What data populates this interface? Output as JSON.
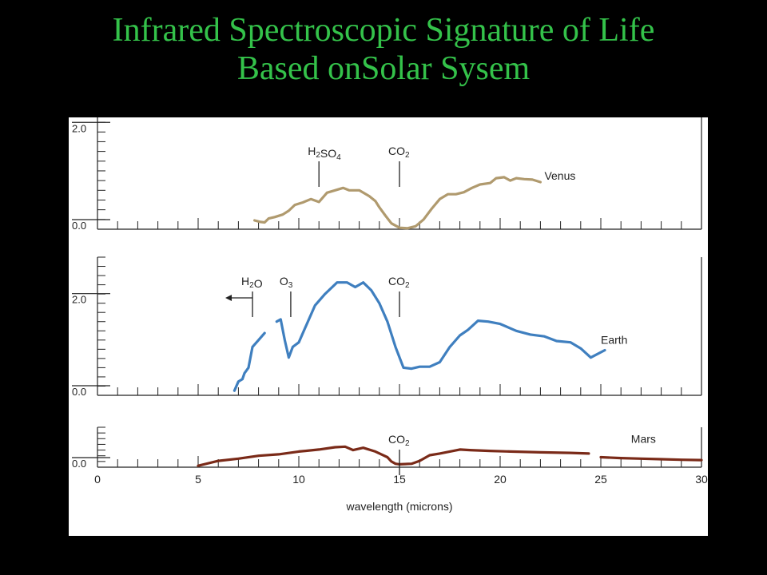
{
  "slide": {
    "title_line1": "Infrared Spectroscopic Signature of Life",
    "title_line2": "Based onSolar Sysem",
    "title_color": "#34c24a",
    "background": "#000000"
  },
  "chart_data": {
    "type": "line",
    "x": {
      "label": "wavelength (microns)",
      "range": [
        0,
        30
      ],
      "ticks": [
        "0",
        "5",
        "10",
        "15",
        "20",
        "25",
        "30"
      ],
      "minor_step": 1
    },
    "grid": false,
    "panels": [
      {
        "id": "venus",
        "ylim": [
          0,
          2.3
        ],
        "y_ticks": [
          {
            "value": 0,
            "label": "0.0"
          },
          {
            "value": 2.0,
            "label": "2.0"
          }
        ],
        "minor_step": 0.2,
        "series": [
          {
            "name": "Venus",
            "color": "#b09a6e",
            "segments": [
              [
                [
                  7.8,
                  0.18
                ],
                [
                  8.1,
                  0.15
                ],
                [
                  8.3,
                  0.14
                ],
                [
                  8.5,
                  0.22
                ],
                [
                  8.8,
                  0.25
                ],
                [
                  9.2,
                  0.3
                ],
                [
                  9.5,
                  0.38
                ],
                [
                  9.8,
                  0.5
                ],
                [
                  10.2,
                  0.55
                ],
                [
                  10.6,
                  0.62
                ],
                [
                  11.0,
                  0.56
                ],
                [
                  11.4,
                  0.75
                ],
                [
                  11.8,
                  0.8
                ],
                [
                  12.2,
                  0.85
                ],
                [
                  12.5,
                  0.8
                ],
                [
                  13.0,
                  0.8
                ],
                [
                  13.5,
                  0.68
                ],
                [
                  13.8,
                  0.58
                ],
                [
                  14.0,
                  0.45
                ],
                [
                  14.3,
                  0.28
                ],
                [
                  14.6,
                  0.12
                ],
                [
                  15.0,
                  0.03
                ],
                [
                  15.4,
                  0.02
                ],
                [
                  15.8,
                  0.06
                ],
                [
                  16.2,
                  0.2
                ],
                [
                  16.6,
                  0.42
                ],
                [
                  17.0,
                  0.62
                ],
                [
                  17.4,
                  0.72
                ],
                [
                  17.8,
                  0.72
                ],
                [
                  18.2,
                  0.76
                ],
                [
                  18.6,
                  0.85
                ],
                [
                  19.0,
                  0.92
                ],
                [
                  19.5,
                  0.95
                ],
                [
                  19.8,
                  1.05
                ],
                [
                  20.2,
                  1.07
                ],
                [
                  20.5,
                  1.0
                ],
                [
                  20.8,
                  1.05
                ],
                [
                  21.2,
                  1.03
                ],
                [
                  21.6,
                  1.02
                ],
                [
                  22.0,
                  0.97
                ]
              ]
            ]
          }
        ],
        "annotations": [
          {
            "text": "H",
            "sub": "2",
            "text2": "SO",
            "sub2": "4",
            "x": 11.0
          },
          {
            "text": "CO",
            "sub": "2",
            "x": 15.0
          },
          {
            "text": "Venus",
            "x": 22.2,
            "y": 1.02,
            "kind": "series-label"
          }
        ]
      },
      {
        "id": "earth",
        "ylim": [
          0,
          3.0
        ],
        "y_ticks": [
          {
            "value": 0,
            "label": "0.0"
          },
          {
            "value": 2.0,
            "label": "2.0"
          }
        ],
        "minor_step": 0.2,
        "series": [
          {
            "name": "Earth",
            "color": "#3f7fbf",
            "segments": [
              [
                [
                  6.8,
                  0.1
                ],
                [
                  7.0,
                  0.3
                ],
                [
                  7.2,
                  0.35
                ],
                [
                  7.3,
                  0.48
                ],
                [
                  7.5,
                  0.6
                ],
                [
                  7.7,
                  1.05
                ],
                [
                  8.0,
                  1.2
                ],
                [
                  8.3,
                  1.35
                ]
              ],
              [
                [
                  8.9,
                  1.6
                ],
                [
                  9.1,
                  1.65
                ],
                [
                  9.3,
                  1.2
                ],
                [
                  9.5,
                  0.82
                ],
                [
                  9.7,
                  1.05
                ],
                [
                  10.0,
                  1.15
                ],
                [
                  10.4,
                  1.55
                ],
                [
                  10.8,
                  1.95
                ],
                [
                  11.3,
                  2.2
                ],
                [
                  11.9,
                  2.45
                ],
                [
                  12.4,
                  2.45
                ],
                [
                  12.8,
                  2.35
                ],
                [
                  13.2,
                  2.45
                ],
                [
                  13.6,
                  2.28
                ],
                [
                  14.0,
                  2.0
                ],
                [
                  14.4,
                  1.6
                ],
                [
                  14.8,
                  1.05
                ],
                [
                  15.2,
                  0.6
                ],
                [
                  15.6,
                  0.58
                ],
                [
                  16.0,
                  0.62
                ],
                [
                  16.5,
                  0.62
                ],
                [
                  17.0,
                  0.72
                ],
                [
                  17.5,
                  1.05
                ],
                [
                  18.0,
                  1.3
                ],
                [
                  18.4,
                  1.42
                ],
                [
                  18.9,
                  1.62
                ],
                [
                  19.4,
                  1.6
                ],
                [
                  20.0,
                  1.55
                ],
                [
                  20.8,
                  1.4
                ],
                [
                  21.5,
                  1.32
                ],
                [
                  22.2,
                  1.28
                ],
                [
                  22.8,
                  1.18
                ],
                [
                  23.5,
                  1.15
                ],
                [
                  24.0,
                  1.02
                ],
                [
                  24.5,
                  0.82
                ],
                [
                  25.2,
                  0.98
                ]
              ]
            ]
          }
        ],
        "annotations": [
          {
            "text": "H",
            "sub": "2",
            "text2": "O",
            "x": 7.7,
            "arrow": "left"
          },
          {
            "text": "O",
            "sub": "3",
            "x": 9.6
          },
          {
            "text": "CO",
            "sub": "2",
            "x": 15.0
          },
          {
            "text": "Earth",
            "x": 25.0,
            "y": 1.12,
            "kind": "series-label"
          }
        ]
      },
      {
        "id": "mars",
        "ylim": [
          0,
          1.4
        ],
        "y_ticks": [
          {
            "value": 0,
            "label": "0.0"
          }
        ],
        "minor_step": 0.2,
        "series": [
          {
            "name": "Mars",
            "color": "#7a2a18",
            "segments": [
              [
                [
                  5.0,
                  0.05
                ],
                [
                  6.0,
                  0.22
                ],
                [
                  7.0,
                  0.3
                ],
                [
                  8.0,
                  0.4
                ],
                [
                  9.0,
                  0.45
                ],
                [
                  10.0,
                  0.55
                ],
                [
                  11.0,
                  0.62
                ],
                [
                  11.8,
                  0.7
                ],
                [
                  12.3,
                  0.72
                ],
                [
                  12.7,
                  0.6
                ],
                [
                  13.2,
                  0.68
                ],
                [
                  13.8,
                  0.55
                ],
                [
                  14.1,
                  0.45
                ],
                [
                  14.4,
                  0.35
                ],
                [
                  14.6,
                  0.2
                ],
                [
                  14.8,
                  0.12
                ],
                [
                  15.0,
                  0.1
                ],
                [
                  15.6,
                  0.12
                ],
                [
                  16.0,
                  0.22
                ],
                [
                  16.5,
                  0.42
                ],
                [
                  17.0,
                  0.48
                ],
                [
                  17.5,
                  0.55
                ],
                [
                  18.0,
                  0.62
                ],
                [
                  18.5,
                  0.6
                ],
                [
                  19.5,
                  0.57
                ],
                [
                  20.5,
                  0.55
                ],
                [
                  22.0,
                  0.52
                ],
                [
                  23.5,
                  0.5
                ],
                [
                  24.4,
                  0.48
                ]
              ],
              [
                [
                  25.0,
                  0.35
                ],
                [
                  26.0,
                  0.32
                ],
                [
                  27.0,
                  0.3
                ],
                [
                  28.0,
                  0.28
                ],
                [
                  29.0,
                  0.26
                ],
                [
                  30.0,
                  0.25
                ]
              ]
            ]
          }
        ],
        "annotations": [
          {
            "text": "CO",
            "sub": "2",
            "x": 15.0
          },
          {
            "text": "Mars",
            "x": 26.5,
            "y": 0.85,
            "kind": "series-label"
          }
        ]
      }
    ]
  }
}
